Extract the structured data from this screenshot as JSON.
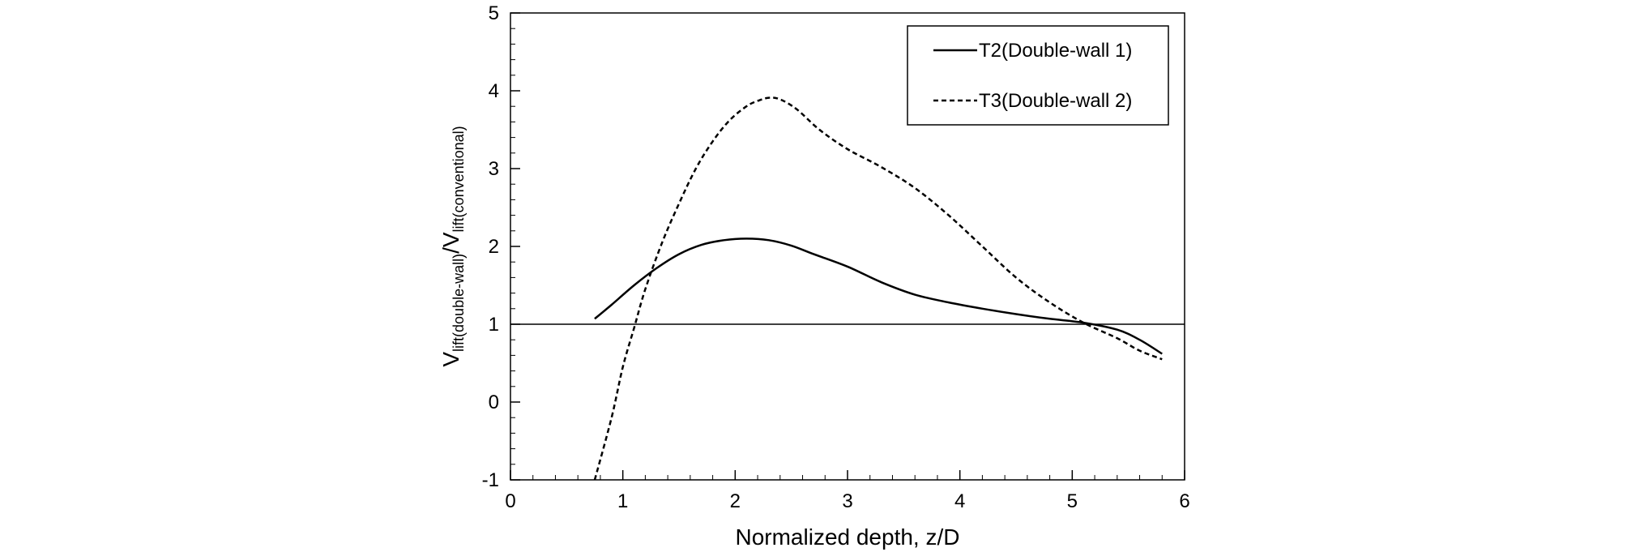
{
  "chart_data": {
    "type": "line",
    "xlabel": "Normalized depth, z/D",
    "ylabel": {
      "parts": [
        {
          "text": "V",
          "sub": false
        },
        {
          "text": "lift(double-wall)",
          "sub": true
        },
        {
          "text": "/V",
          "sub": false
        },
        {
          "text": "lift(conventional)",
          "sub": true
        }
      ]
    },
    "xlim": [
      0,
      6
    ],
    "ylim": [
      -1,
      5
    ],
    "xticks": [
      0,
      1,
      2,
      3,
      4,
      5,
      6
    ],
    "yticks": [
      -1,
      0,
      1,
      2,
      3,
      4,
      5
    ],
    "x_minor_step": 0.2,
    "y_minor_step": 0.2,
    "grid": false,
    "legend_position": "top-right",
    "reference_line": {
      "y": 1
    },
    "series": [
      {
        "name": "T2(Double-wall 1)",
        "style": "solid",
        "color": "#000000",
        "points": [
          [
            0.75,
            1.07
          ],
          [
            0.9,
            1.25
          ],
          [
            1.1,
            1.5
          ],
          [
            1.3,
            1.72
          ],
          [
            1.5,
            1.9
          ],
          [
            1.7,
            2.02
          ],
          [
            1.9,
            2.08
          ],
          [
            2.1,
            2.1
          ],
          [
            2.3,
            2.08
          ],
          [
            2.5,
            2.01
          ],
          [
            2.7,
            1.9
          ],
          [
            3.0,
            1.74
          ],
          [
            3.3,
            1.54
          ],
          [
            3.6,
            1.38
          ],
          [
            3.9,
            1.28
          ],
          [
            4.2,
            1.2
          ],
          [
            4.5,
            1.13
          ],
          [
            4.8,
            1.07
          ],
          [
            5.1,
            1.02
          ],
          [
            5.4,
            0.93
          ],
          [
            5.6,
            0.8
          ],
          [
            5.8,
            0.62
          ]
        ]
      },
      {
        "name": "T3(Double-wall 2)",
        "style": "dashed",
        "color": "#000000",
        "points": [
          [
            0.75,
            -1.0
          ],
          [
            0.9,
            -0.2
          ],
          [
            1.0,
            0.45
          ],
          [
            1.1,
            0.95
          ],
          [
            1.2,
            1.45
          ],
          [
            1.35,
            2.05
          ],
          [
            1.5,
            2.55
          ],
          [
            1.65,
            3.0
          ],
          [
            1.8,
            3.35
          ],
          [
            1.95,
            3.62
          ],
          [
            2.1,
            3.8
          ],
          [
            2.2,
            3.87
          ],
          [
            2.3,
            3.91
          ],
          [
            2.4,
            3.89
          ],
          [
            2.55,
            3.76
          ],
          [
            2.75,
            3.5
          ],
          [
            3.0,
            3.25
          ],
          [
            3.3,
            3.02
          ],
          [
            3.6,
            2.75
          ],
          [
            3.9,
            2.4
          ],
          [
            4.2,
            2.0
          ],
          [
            4.5,
            1.6
          ],
          [
            4.8,
            1.28
          ],
          [
            5.1,
            1.02
          ],
          [
            5.4,
            0.82
          ],
          [
            5.6,
            0.66
          ],
          [
            5.8,
            0.55
          ]
        ]
      }
    ]
  }
}
